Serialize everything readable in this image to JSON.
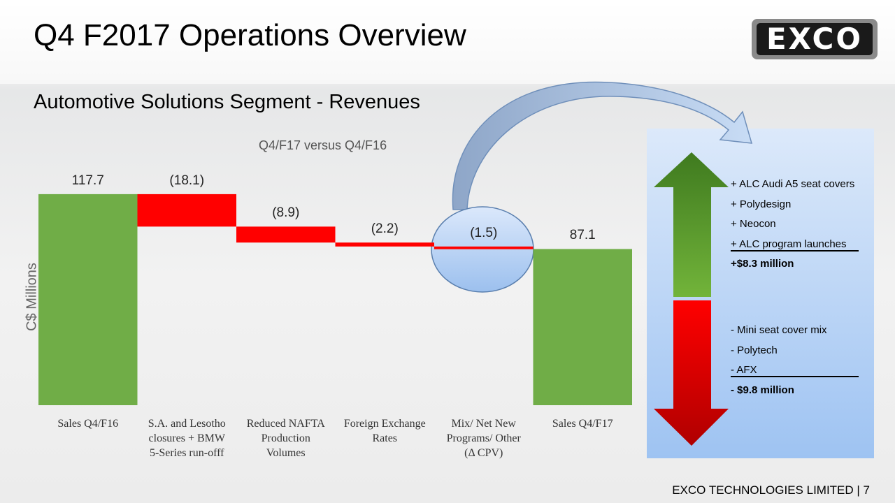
{
  "header": {
    "title": "Q4 F2017 Operations Overview",
    "logo": "EXCO",
    "subtitle": "Automotive Solutions Segment - Revenues"
  },
  "chart_data": {
    "type": "waterfall",
    "title": "Q4/F17 versus Q4/F16",
    "y_label": "C$ Millions",
    "categories": [
      "Sales Q4/F16",
      "S.A. and Lesotho\nclosures + BMW\n5-Series run-offf",
      "Reduced NAFTA\nProduction\nVolumes",
      "Foreign Exchange\nRates",
      "Mix/ Net New\nPrograms/ Other\n(Δ CPV)",
      "Sales Q4/F17"
    ],
    "values": [
      117.7,
      -18.1,
      -8.9,
      -2.2,
      -1.5,
      87.1
    ],
    "value_labels": [
      "117.7",
      "(18.1)",
      "(8.9)",
      "(2.2)",
      "(1.5)",
      "87.1"
    ],
    "measure": [
      "total",
      "relative",
      "relative",
      "relative",
      "relative",
      "total"
    ],
    "colors": {
      "total": "#70ad47",
      "decrease": "#ff0000"
    },
    "ylim": [
      0,
      120
    ]
  },
  "panel": {
    "increases": [
      "+ ALC Audi A5 seat covers",
      "+ Polydesign",
      "+ Neocon",
      "+ ALC program launches"
    ],
    "increase_total": "+$8.3 million",
    "decreases": [
      "- Mini seat cover mix",
      "- Polytech",
      "- AFX"
    ],
    "decrease_total": "- $9.8 million"
  },
  "footer": "EXCO TECHNOLOGIES LIMITED  |  7"
}
